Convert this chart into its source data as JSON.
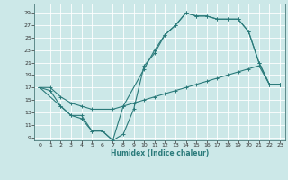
{
  "xlabel": "Humidex (Indice chaleur)",
  "bg_color": "#cce8e8",
  "grid_color": "#ffffff",
  "line_color": "#2a7a7a",
  "xlim": [
    -0.5,
    23.5
  ],
  "ylim": [
    8.5,
    30.5
  ],
  "xticks": [
    0,
    1,
    2,
    3,
    4,
    5,
    6,
    7,
    8,
    9,
    10,
    11,
    12,
    13,
    14,
    15,
    16,
    17,
    18,
    19,
    20,
    21,
    22,
    23
  ],
  "yticks": [
    9,
    11,
    13,
    15,
    17,
    19,
    21,
    23,
    25,
    27,
    29
  ],
  "line1_x": [
    0,
    1,
    2,
    3,
    4,
    5,
    6,
    7,
    8,
    9,
    10,
    11,
    12,
    13,
    14,
    15,
    16,
    17,
    18,
    19,
    20,
    21,
    22,
    23
  ],
  "line1_y": [
    17,
    16.5,
    14,
    12.5,
    12,
    10,
    10,
    8.5,
    9.5,
    13.5,
    20.5,
    22.5,
    25.5,
    27,
    29,
    28.5,
    28.5,
    28,
    28,
    28,
    26,
    21,
    17.5,
    17.5
  ],
  "line2_x": [
    0,
    1,
    2,
    3,
    4,
    5,
    6,
    7,
    8,
    9,
    10,
    11,
    12,
    13,
    14,
    15,
    16,
    17,
    18,
    19,
    20,
    21,
    22,
    23
  ],
  "line2_y": [
    17,
    17,
    15.5,
    14.5,
    14,
    13.5,
    13.5,
    13.5,
    14,
    14.5,
    15,
    15.5,
    16,
    16.5,
    17,
    17.5,
    18,
    18.5,
    19,
    19.5,
    20,
    20.5,
    17.5,
    17.5
  ],
  "line3_x": [
    0,
    2,
    3,
    4,
    5,
    6,
    7,
    8,
    10,
    11,
    12,
    13,
    14,
    15,
    16,
    17,
    18,
    19,
    20,
    21,
    22,
    23
  ],
  "line3_y": [
    17,
    14,
    12.5,
    12.5,
    10,
    10,
    8.5,
    14,
    20,
    23,
    25.5,
    27,
    29,
    28.5,
    28.5,
    28,
    28,
    28,
    26,
    21,
    17.5,
    17.5
  ]
}
